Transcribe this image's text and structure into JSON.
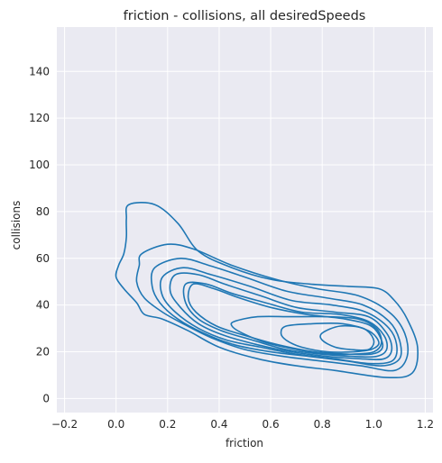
{
  "chart_data": {
    "type": "kde-contour",
    "title": "friction - collisions, all desiredSpeeds",
    "xlabel": "friction",
    "ylabel": "collisions",
    "xlim": [
      -0.23,
      1.23
    ],
    "ylim": [
      -6,
      159
    ],
    "xticks": [
      {
        "value": -0.2,
        "label": "−0.2"
      },
      {
        "value": 0.0,
        "label": "0.0"
      },
      {
        "value": 0.2,
        "label": "0.2"
      },
      {
        "value": 0.4,
        "label": "0.4"
      },
      {
        "value": 0.6,
        "label": "0.6"
      },
      {
        "value": 0.8,
        "label": "0.8"
      },
      {
        "value": 1.0,
        "label": "1.0"
      },
      {
        "value": 1.2,
        "label": "1.2"
      }
    ],
    "yticks": [
      {
        "value": 0,
        "label": "0"
      },
      {
        "value": 20,
        "label": "20"
      },
      {
        "value": 40,
        "label": "40"
      },
      {
        "value": 60,
        "label": "60"
      },
      {
        "value": 80,
        "label": "80"
      },
      {
        "value": 100,
        "label": "100"
      },
      {
        "value": 120,
        "label": "120"
      },
      {
        "value": 140,
        "label": "140"
      }
    ],
    "grid": true,
    "line_color": "#1f77b4",
    "background_color": "#eaeaf2",
    "contours": [
      [
        [
          0.05,
          83
        ],
        [
          0.15,
          83
        ],
        [
          0.24,
          75
        ],
        [
          0.32,
          63
        ],
        [
          0.45,
          56
        ],
        [
          0.6,
          51
        ],
        [
          0.75,
          49
        ],
        [
          0.9,
          48
        ],
        [
          1.02,
          47
        ],
        [
          1.08,
          42
        ],
        [
          1.13,
          34
        ],
        [
          1.17,
          22
        ],
        [
          1.15,
          11
        ],
        [
          1.05,
          9
        ],
        [
          0.85,
          12
        ],
        [
          0.7,
          14
        ],
        [
          0.55,
          17
        ],
        [
          0.4,
          22
        ],
        [
          0.28,
          29
        ],
        [
          0.18,
          34
        ],
        [
          0.11,
          36
        ],
        [
          0.08,
          41
        ],
        [
          0.03,
          47
        ],
        [
          0.0,
          52
        ],
        [
          0.01,
          57
        ],
        [
          0.03,
          62
        ],
        [
          0.04,
          69
        ],
        [
          0.04,
          77
        ],
        [
          0.05,
          83
        ]
      ],
      [
        [
          0.1,
          62
        ],
        [
          0.2,
          66
        ],
        [
          0.3,
          64
        ],
        [
          0.45,
          57
        ],
        [
          0.62,
          51
        ],
        [
          0.78,
          47
        ],
        [
          0.94,
          44
        ],
        [
          1.06,
          37
        ],
        [
          1.12,
          28
        ],
        [
          1.13,
          18
        ],
        [
          1.08,
          12
        ],
        [
          0.95,
          14
        ],
        [
          0.8,
          16
        ],
        [
          0.65,
          18
        ],
        [
          0.5,
          21
        ],
        [
          0.37,
          26
        ],
        [
          0.26,
          32
        ],
        [
          0.18,
          37
        ],
        [
          0.11,
          43
        ],
        [
          0.08,
          50
        ],
        [
          0.09,
          57
        ],
        [
          0.1,
          62
        ]
      ],
      [
        [
          0.15,
          56
        ],
        [
          0.25,
          60
        ],
        [
          0.36,
          57
        ],
        [
          0.5,
          52
        ],
        [
          0.66,
          46
        ],
        [
          0.82,
          43
        ],
        [
          0.96,
          40
        ],
        [
          1.06,
          33
        ],
        [
          1.1,
          25
        ],
        [
          1.1,
          17
        ],
        [
          1.03,
          14
        ],
        [
          0.9,
          16
        ],
        [
          0.75,
          18
        ],
        [
          0.6,
          20
        ],
        [
          0.46,
          23
        ],
        [
          0.34,
          28
        ],
        [
          0.24,
          34
        ],
        [
          0.17,
          41
        ],
        [
          0.14,
          48
        ],
        [
          0.15,
          56
        ]
      ],
      [
        [
          0.18,
          52
        ],
        [
          0.26,
          56
        ],
        [
          0.37,
          53
        ],
        [
          0.52,
          48
        ],
        [
          0.68,
          42
        ],
        [
          0.84,
          40
        ],
        [
          0.97,
          37
        ],
        [
          1.06,
          30
        ],
        [
          1.09,
          22
        ],
        [
          1.07,
          16
        ],
        [
          0.98,
          15
        ],
        [
          0.85,
          17
        ],
        [
          0.7,
          19
        ],
        [
          0.56,
          22
        ],
        [
          0.43,
          25
        ],
        [
          0.32,
          30
        ],
        [
          0.23,
          37
        ],
        [
          0.18,
          44
        ],
        [
          0.18,
          52
        ]
      ],
      [
        [
          0.23,
          53
        ],
        [
          0.32,
          53
        ],
        [
          0.42,
          49
        ],
        [
          0.56,
          44
        ],
        [
          0.7,
          39
        ],
        [
          0.85,
          37
        ],
        [
          0.98,
          35
        ],
        [
          1.05,
          28
        ],
        [
          1.07,
          21
        ],
        [
          1.04,
          17
        ],
        [
          0.95,
          17
        ],
        [
          0.82,
          18
        ],
        [
          0.68,
          20
        ],
        [
          0.55,
          23
        ],
        [
          0.42,
          27
        ],
        [
          0.32,
          32
        ],
        [
          0.25,
          39
        ],
        [
          0.21,
          46
        ],
        [
          0.23,
          53
        ]
      ],
      [
        [
          0.27,
          49
        ],
        [
          0.35,
          49
        ],
        [
          0.45,
          45
        ],
        [
          0.58,
          41
        ],
        [
          0.72,
          37
        ],
        [
          0.87,
          36
        ],
        [
          0.98,
          33
        ],
        [
          1.04,
          27
        ],
        [
          1.05,
          21
        ],
        [
          1.01,
          18
        ],
        [
          0.92,
          18
        ],
        [
          0.8,
          19
        ],
        [
          0.66,
          21
        ],
        [
          0.53,
          25
        ],
        [
          0.41,
          29
        ],
        [
          0.32,
          34
        ],
        [
          0.27,
          41
        ],
        [
          0.27,
          49
        ]
      ],
      [
        [
          0.3,
          49
        ],
        [
          0.38,
          47
        ],
        [
          0.48,
          43
        ],
        [
          0.6,
          39
        ],
        [
          0.74,
          36
        ],
        [
          0.89,
          34
        ],
        [
          0.99,
          31
        ],
        [
          1.03,
          25
        ],
        [
          1.03,
          21
        ],
        [
          0.99,
          19
        ],
        [
          0.9,
          19
        ],
        [
          0.77,
          20
        ],
        [
          0.63,
          23
        ],
        [
          0.5,
          27
        ],
        [
          0.39,
          31
        ],
        [
          0.31,
          37
        ],
        [
          0.28,
          43
        ],
        [
          0.3,
          49
        ]
      ],
      [
        [
          0.46,
          33
        ],
        [
          0.55,
          35
        ],
        [
          0.68,
          35
        ],
        [
          0.82,
          35
        ],
        [
          0.94,
          34
        ],
        [
          1.01,
          30
        ],
        [
          1.03,
          24
        ],
        [
          1.0,
          20
        ],
        [
          0.92,
          19
        ],
        [
          0.82,
          19
        ],
        [
          0.7,
          21
        ],
        [
          0.58,
          24
        ],
        [
          0.49,
          28
        ],
        [
          0.45,
          31
        ],
        [
          0.46,
          33
        ]
      ],
      [
        [
          0.66,
          31
        ],
        [
          0.76,
          32
        ],
        [
          0.88,
          32
        ],
        [
          0.98,
          29
        ],
        [
          1.02,
          24
        ],
        [
          0.99,
          21
        ],
        [
          0.92,
          20
        ],
        [
          0.82,
          20
        ],
        [
          0.72,
          22
        ],
        [
          0.66,
          25
        ],
        [
          0.64,
          28
        ],
        [
          0.66,
          31
        ]
      ],
      [
        [
          0.8,
          28
        ],
        [
          0.87,
          31
        ],
        [
          0.96,
          30
        ],
        [
          1.0,
          25
        ],
        [
          0.98,
          21
        ],
        [
          0.91,
          21
        ],
        [
          0.85,
          22
        ],
        [
          0.8,
          25
        ],
        [
          0.8,
          28
        ]
      ]
    ]
  }
}
